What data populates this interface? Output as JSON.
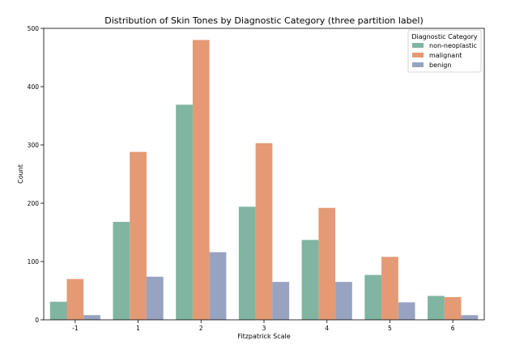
{
  "chart_data": {
    "type": "bar",
    "title": "Distribution of Skin Tones by Diagnostic Category (three partition label)",
    "xlabel": "Fitzpatrick Scale",
    "ylabel": "Count",
    "categories": [
      "-1",
      "1",
      "2",
      "3",
      "4",
      "5",
      "6"
    ],
    "ylim": [
      0,
      500
    ],
    "yticks": [
      "0",
      "100",
      "200",
      "300",
      "400",
      "500"
    ],
    "legend": {
      "title": "Diagnostic Category",
      "placement": "top-right"
    },
    "series": [
      {
        "name": "non-neoplastic",
        "color": "#7fb5a1",
        "values": [
          31,
          168,
          369,
          194,
          137,
          77,
          41
        ]
      },
      {
        "name": "malignant",
        "color": "#e49a74",
        "values": [
          70,
          288,
          480,
          303,
          192,
          108,
          39
        ]
      },
      {
        "name": "benign",
        "color": "#98a3c2",
        "values": [
          8,
          74,
          116,
          65,
          65,
          30,
          8
        ]
      }
    ]
  }
}
